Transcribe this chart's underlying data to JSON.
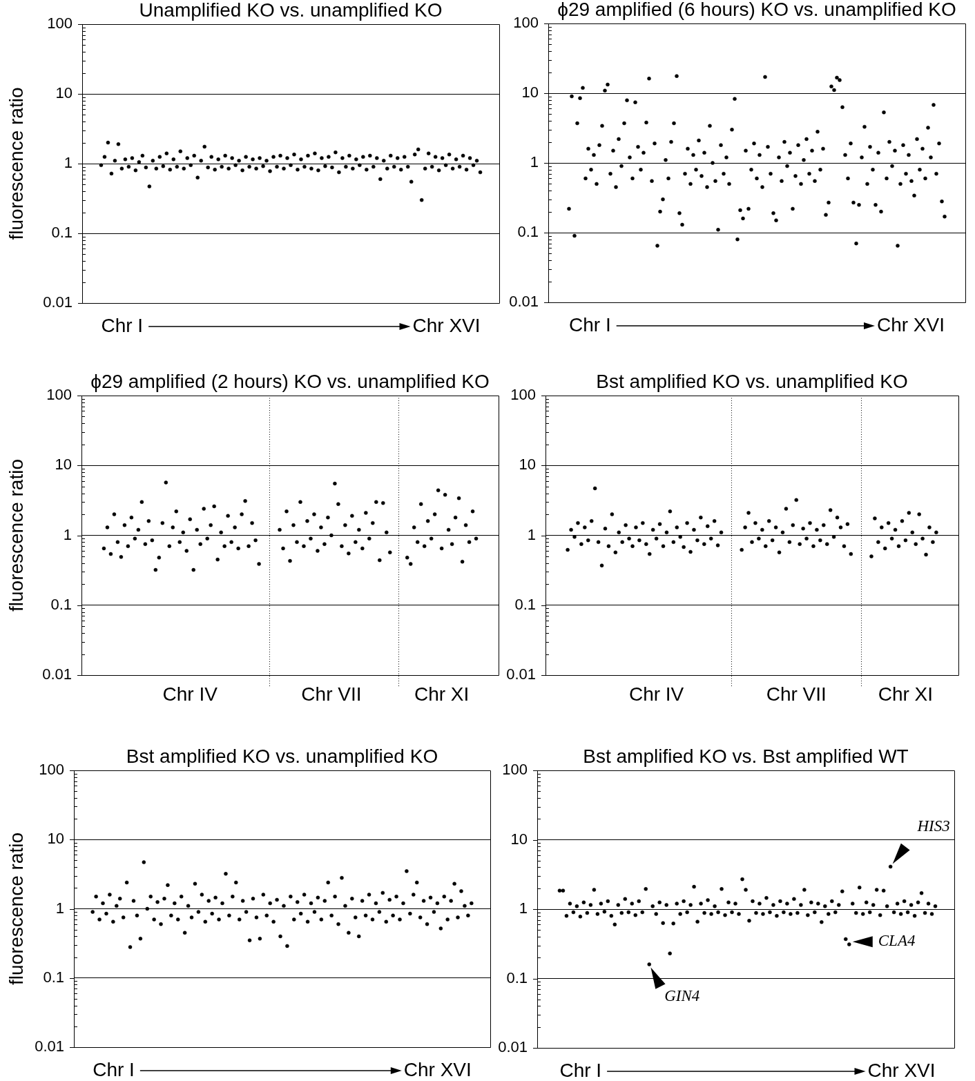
{
  "chart_data": [
    {
      "type": "scatter",
      "title": "Unamplified KO vs. unamplified KO",
      "ylabel": "fluorescence ratio",
      "color": "#000000",
      "marker": "circle",
      "log": true,
      "ylim": [
        0.01,
        100
      ],
      "grid": "y",
      "annotations": [
        "Chr I",
        "Chr XVI"
      ],
      "yticks": [
        0.01,
        {
          "value": 0.02,
          "label": null
        },
        {
          "value": 0.03,
          "label": null
        },
        {
          "value": 0.04,
          "label": null
        },
        {
          "value": 0.05,
          "label": null
        },
        {
          "value": 0.06,
          "label": null
        },
        {
          "value": 0.07,
          "label": null
        },
        {
          "value": 0.08,
          "label": null
        },
        {
          "value": 0.09,
          "label": null
        },
        0.1,
        {
          "value": 0.2,
          "label": null
        },
        {
          "value": 0.3,
          "label": null
        },
        {
          "value": 0.4,
          "label": null
        },
        {
          "value": 0.5,
          "label": null
        },
        {
          "value": 0.6,
          "label": null
        },
        {
          "value": 0.7,
          "label": null
        },
        {
          "value": 0.8,
          "label": null
        },
        {
          "value": 0.9,
          "label": null
        },
        1,
        {
          "value": 2,
          "label": null
        },
        {
          "value": 3,
          "label": null
        },
        {
          "value": 4,
          "label": null
        },
        {
          "value": 5,
          "label": null
        },
        {
          "value": 6,
          "label": null
        },
        {
          "value": 7,
          "label": null
        },
        {
          "value": 8,
          "label": null
        },
        {
          "value": 9,
          "label": null
        },
        10,
        {
          "value": 20,
          "label": null
        },
        {
          "value": 30,
          "label": null
        },
        {
          "value": 40,
          "label": null
        },
        {
          "value": 50,
          "label": null
        },
        {
          "value": 60,
          "label": null
        },
        {
          "value": 70,
          "label": null
        },
        {
          "value": 80,
          "label": null
        },
        {
          "value": 90,
          "label": null
        },
        100
      ],
      "categories": [
        null,
        null,
        null,
        null,
        null,
        null,
        null,
        null,
        null,
        null,
        null,
        null,
        null,
        null,
        null,
        null,
        null,
        null,
        null,
        null,
        null,
        null,
        null,
        null,
        null,
        null,
        null,
        null,
        null,
        null,
        null,
        null,
        null,
        null,
        null,
        null,
        null,
        null,
        null,
        null,
        null,
        null,
        null,
        null,
        null,
        null,
        null,
        null,
        null,
        null,
        null,
        null,
        null,
        null,
        null,
        null,
        null,
        null,
        null,
        null,
        null,
        null,
        null,
        null,
        null,
        null,
        null,
        null,
        null,
        null,
        null,
        null,
        null,
        null,
        null,
        null,
        null,
        null,
        null,
        null,
        null,
        null,
        null,
        null,
        null,
        null,
        null,
        null,
        null,
        null,
        null,
        null,
        null,
        null,
        null,
        null,
        null,
        null,
        null,
        null,
        null,
        null,
        null,
        null,
        null,
        null,
        null,
        null,
        null,
        null,
        null,
        null,
        null,
        null,
        null,
        null,
        null,
        null,
        null,
        null,
        null
      ],
      "values": [
        null,
        null,
        null,
        null,
        null,
        0.95,
        1.25,
        2.0,
        0.72,
        1.1,
        1.9,
        0.85,
        1.15,
        0.9,
        1.2,
        0.8,
        1.05,
        1.3,
        0.88,
        0.47,
        1.1,
        0.85,
        1.25,
        0.92,
        1.4,
        0.82,
        1.15,
        0.9,
        1.5,
        0.85,
        1.2,
        0.95,
        1.3,
        0.63,
        1.1,
        1.75,
        0.88,
        1.25,
        0.82,
        1.15,
        0.9,
        1.3,
        0.85,
        1.2,
        0.95,
        1.1,
        0.8,
        1.25,
        0.9,
        1.15,
        0.85,
        1.2,
        0.92,
        1.1,
        0.78,
        1.25,
        0.9,
        1.3,
        0.85,
        1.2,
        0.95,
        1.35,
        0.82,
        1.15,
        0.9,
        1.3,
        0.85,
        1.4,
        0.8,
        1.2,
        0.92,
        1.25,
        0.88,
        1.45,
        0.75,
        1.2,
        0.9,
        1.3,
        0.85,
        1.15,
        0.95,
        1.25,
        0.82,
        1.3,
        0.9,
        1.2,
        0.6,
        1.1,
        0.85,
        1.3,
        0.9,
        1.2,
        0.82,
        1.25,
        0.9,
        0.55,
        1.35,
        1.6,
        0.3,
        0.85,
        1.4,
        0.9,
        1.25,
        0.8,
        1.2,
        0.95,
        1.35,
        0.85,
        1.15,
        0.9,
        1.3,
        0.82,
        1.2,
        0.95,
        1.1,
        0.75,
        null,
        null,
        null,
        null,
        null
      ]
    },
    {
      "type": "scatter",
      "title": "ϕ29 amplified (6 hours) KO vs. unamplified KO",
      "color": "#000000",
      "marker": "circle",
      "log": true,
      "ylim": [
        0.01,
        100
      ],
      "grid": "y",
      "annotations": [
        "Chr I",
        "Chr XVI"
      ],
      "yticks": [
        0.01,
        {
          "value": 0.02,
          "label": null
        },
        {
          "value": 0.03,
          "label": null
        },
        {
          "value": 0.04,
          "label": null
        },
        {
          "value": 0.05,
          "label": null
        },
        {
          "value": 0.06,
          "label": null
        },
        {
          "value": 0.07,
          "label": null
        },
        {
          "value": 0.08,
          "label": null
        },
        {
          "value": 0.09,
          "label": null
        },
        0.1,
        {
          "value": 0.2,
          "label": null
        },
        {
          "value": 0.3,
          "label": null
        },
        {
          "value": 0.4,
          "label": null
        },
        {
          "value": 0.5,
          "label": null
        },
        {
          "value": 0.6,
          "label": null
        },
        {
          "value": 0.7,
          "label": null
        },
        {
          "value": 0.8,
          "label": null
        },
        {
          "value": 0.9,
          "label": null
        },
        1,
        {
          "value": 2,
          "label": null
        },
        {
          "value": 3,
          "label": null
        },
        {
          "value": 4,
          "label": null
        },
        {
          "value": 5,
          "label": null
        },
        {
          "value": 6,
          "label": null
        },
        {
          "value": 7,
          "label": null
        },
        {
          "value": 8,
          "label": null
        },
        {
          "value": 9,
          "label": null
        },
        10,
        {
          "value": 20,
          "label": null
        },
        {
          "value": 30,
          "label": null
        },
        {
          "value": 40,
          "label": null
        },
        {
          "value": 50,
          "label": null
        },
        {
          "value": 60,
          "label": null
        },
        {
          "value": 70,
          "label": null
        },
        {
          "value": 80,
          "label": null
        },
        {
          "value": 90,
          "label": null
        },
        100
      ],
      "categories": [
        null,
        null,
        null,
        null,
        null,
        null,
        null,
        null,
        null,
        null,
        null,
        null,
        null,
        null,
        null,
        null,
        null,
        null,
        null,
        null,
        null,
        null,
        null,
        null,
        null,
        null,
        null,
        null,
        null,
        null,
        null,
        null,
        null,
        null,
        null,
        null,
        null,
        null,
        null,
        null,
        null,
        null,
        null,
        null,
        null,
        null,
        null,
        null,
        null,
        null,
        null,
        null,
        null,
        null,
        null,
        null,
        null,
        null,
        null,
        null,
        null,
        null,
        null,
        null,
        null,
        null,
        null,
        null,
        null,
        null,
        null,
        null,
        null,
        null,
        null,
        null,
        null,
        null,
        null,
        null,
        null,
        null,
        null,
        null,
        null,
        null,
        null,
        null,
        null,
        null,
        null,
        null,
        null,
        null,
        null,
        null,
        null,
        null,
        null,
        null,
        null,
        null,
        null,
        null,
        null,
        null,
        null,
        null,
        null,
        null,
        null,
        null,
        null,
        null,
        null,
        null,
        null,
        null,
        null,
        null,
        null,
        null,
        null,
        null,
        null,
        null,
        null,
        null,
        null,
        null,
        null,
        null,
        null,
        null,
        null,
        null,
        null,
        null,
        null,
        null,
        null,
        null,
        null,
        null,
        null,
        null,
        null,
        null,
        null,
        null,
        null
      ],
      "values": [
        null,
        null,
        null,
        null,
        null,
        null,
        null,
        0.22,
        9.0,
        0.09,
        3.7,
        8.5,
        11.9,
        0.6,
        1.6,
        0.8,
        1.3,
        0.5,
        1.8,
        3.4,
        10.9,
        13.3,
        0.7,
        1.5,
        0.45,
        2.2,
        0.9,
        3.7,
        7.9,
        1.2,
        0.6,
        7.4,
        1.7,
        0.8,
        1.4,
        3.8,
        16.2,
        0.55,
        1.9,
        0.065,
        0.2,
        0.3,
        1.1,
        0.6,
        2.0,
        3.7,
        17.6,
        0.19,
        0.13,
        0.7,
        1.6,
        0.5,
        1.3,
        0.8,
        2.1,
        0.65,
        1.4,
        0.45,
        3.4,
        1.0,
        0.55,
        0.11,
        1.8,
        0.7,
        1.2,
        0.5,
        3.0,
        8.3,
        0.08,
        0.21,
        0.16,
        1.5,
        0.22,
        0.8,
        1.9,
        0.6,
        1.3,
        0.45,
        17.1,
        1.7,
        0.7,
        0.19,
        0.15,
        1.2,
        0.55,
        2.0,
        0.9,
        1.4,
        0.22,
        0.65,
        1.8,
        0.5,
        1.1,
        2.2,
        0.7,
        1.5,
        0.55,
        2.8,
        0.8,
        1.6,
        0.18,
        0.27,
        12.5,
        11.1,
        16.7,
        15.4,
        6.3,
        1.3,
        0.6,
        1.9,
        0.27,
        0.07,
        0.25,
        1.2,
        3.3,
        0.5,
        1.7,
        0.8,
        0.25,
        1.4,
        0.2,
        5.3,
        0.6,
        2.0,
        0.9,
        1.5,
        0.065,
        0.5,
        1.8,
        0.7,
        1.3,
        0.55,
        0.34,
        2.2,
        0.8,
        1.6,
        0.6,
        3.2,
        1.2,
        6.8,
        0.7,
        1.9,
        0.28,
        0.17,
        null,
        null,
        null,
        null,
        null,
        null,
        null
      ]
    },
    {
      "type": "scatter",
      "title": "ϕ29 amplified (2 hours) KO vs. unamplified KO",
      "ylabel": "fluorescence ratio",
      "color": "#000000",
      "marker": "circle",
      "log": true,
      "ylim": [
        0.01,
        100
      ],
      "grid": "y",
      "yticks": [
        0.01,
        {
          "value": 0.02,
          "label": null
        },
        {
          "value": 0.03,
          "label": null
        },
        {
          "value": 0.04,
          "label": null
        },
        {
          "value": 0.05,
          "label": null
        },
        {
          "value": 0.06,
          "label": null
        },
        {
          "value": 0.07,
          "label": null
        },
        {
          "value": 0.08,
          "label": null
        },
        {
          "value": 0.09,
          "label": null
        },
        0.1,
        {
          "value": 0.2,
          "label": null
        },
        {
          "value": 0.3,
          "label": null
        },
        {
          "value": 0.4,
          "label": null
        },
        {
          "value": 0.5,
          "label": null
        },
        {
          "value": 0.6,
          "label": null
        },
        {
          "value": 0.7,
          "label": null
        },
        {
          "value": 0.8,
          "label": null
        },
        {
          "value": 0.9,
          "label": null
        },
        1,
        {
          "value": 2,
          "label": null
        },
        {
          "value": 3,
          "label": null
        },
        {
          "value": 4,
          "label": null
        },
        {
          "value": 5,
          "label": null
        },
        {
          "value": 6,
          "label": null
        },
        {
          "value": 7,
          "label": null
        },
        {
          "value": 8,
          "label": null
        },
        {
          "value": 9,
          "label": null
        },
        10,
        {
          "value": 20,
          "label": null
        },
        {
          "value": 30,
          "label": null
        },
        {
          "value": 40,
          "label": null
        },
        {
          "value": 50,
          "label": null
        },
        {
          "value": 60,
          "label": null
        },
        {
          "value": 70,
          "label": null
        },
        {
          "value": 80,
          "label": null
        },
        {
          "value": 90,
          "label": null
        },
        100
      ],
      "categories": [
        null,
        null,
        null,
        null,
        null,
        null,
        null,
        null,
        null,
        null,
        null,
        null,
        null,
        null,
        null,
        null,
        null,
        null,
        null,
        null,
        null,
        null,
        null,
        null,
        null,
        null,
        null,
        null,
        null,
        null,
        null,
        "Chr IV",
        null,
        null,
        null,
        null,
        null,
        null,
        null,
        null,
        null,
        null,
        null,
        null,
        null,
        null,
        null,
        null,
        null,
        null,
        null,
        null,
        null,
        null,
        null,
        null,
        null,
        null,
        null,
        null,
        null,
        null,
        null,
        null,
        null,
        null,
        null,
        null,
        null,
        null,
        null,
        null,
        "Chr VII",
        null,
        null,
        null,
        null,
        null,
        null,
        null,
        null,
        null,
        null,
        null,
        null,
        null,
        null,
        null,
        null,
        null,
        null,
        null,
        null,
        null,
        null,
        null,
        null,
        null,
        null,
        null,
        null,
        null,
        null,
        null,
        "Chr XI",
        null,
        null,
        null,
        null,
        null,
        null,
        null,
        null,
        null,
        null,
        null,
        null,
        null,
        null,
        null,
        null
      ],
      "values": [
        null,
        null,
        null,
        null,
        null,
        null,
        0.65,
        1.3,
        0.54,
        2.0,
        0.8,
        0.49,
        1.4,
        0.7,
        1.8,
        0.9,
        1.2,
        3.0,
        0.75,
        1.6,
        0.85,
        0.32,
        0.48,
        1.5,
        5.7,
        0.7,
        1.3,
        2.2,
        0.8,
        1.1,
        0.6,
        1.7,
        0.32,
        1.2,
        0.75,
        2.4,
        0.9,
        1.4,
        2.6,
        0.45,
        1.1,
        0.7,
        1.9,
        0.8,
        1.3,
        0.65,
        2.0,
        3.1,
        0.7,
        1.5,
        0.85,
        0.39,
        null,
        null,
        null,
        null,
        null,
        1.2,
        0.65,
        2.2,
        0.43,
        1.4,
        0.8,
        3.0,
        0.7,
        1.6,
        0.9,
        2.0,
        0.6,
        1.3,
        0.75,
        1.8,
        1.0,
        5.5,
        2.8,
        0.7,
        1.4,
        0.55,
        1.9,
        0.8,
        1.2,
        0.65,
        2.1,
        0.9,
        1.5,
        3.0,
        0.44,
        2.9,
        1.1,
        0.57,
        null,
        null,
        null,
        null,
        0.48,
        0.39,
        1.3,
        0.8,
        2.8,
        0.7,
        1.6,
        0.9,
        2.0,
        4.4,
        0.65,
        3.8,
        1.2,
        0.75,
        1.8,
        3.4,
        0.42,
        1.4,
        0.8,
        2.2,
        0.9,
        null,
        null,
        null,
        null,
        null,
        null
      ]
    },
    {
      "type": "scatter",
      "title": "Bst amplified KO vs. unamplified KO",
      "color": "#000000",
      "marker": "circle",
      "log": true,
      "ylim": [
        0.01,
        100
      ],
      "grid": "y",
      "yticks": [
        0.01,
        {
          "value": 0.02,
          "label": null
        },
        {
          "value": 0.03,
          "label": null
        },
        {
          "value": 0.04,
          "label": null
        },
        {
          "value": 0.05,
          "label": null
        },
        {
          "value": 0.06,
          "label": null
        },
        {
          "value": 0.07,
          "label": null
        },
        {
          "value": 0.08,
          "label": null
        },
        {
          "value": 0.09,
          "label": null
        },
        0.1,
        {
          "value": 0.2,
          "label": null
        },
        {
          "value": 0.3,
          "label": null
        },
        {
          "value": 0.4,
          "label": null
        },
        {
          "value": 0.5,
          "label": null
        },
        {
          "value": 0.6,
          "label": null
        },
        {
          "value": 0.7,
          "label": null
        },
        {
          "value": 0.8,
          "label": null
        },
        {
          "value": 0.9,
          "label": null
        },
        1,
        {
          "value": 2,
          "label": null
        },
        {
          "value": 3,
          "label": null
        },
        {
          "value": 4,
          "label": null
        },
        {
          "value": 5,
          "label": null
        },
        {
          "value": 6,
          "label": null
        },
        {
          "value": 7,
          "label": null
        },
        {
          "value": 8,
          "label": null
        },
        {
          "value": 9,
          "label": null
        },
        10,
        {
          "value": 20,
          "label": null
        },
        {
          "value": 30,
          "label": null
        },
        {
          "value": 40,
          "label": null
        },
        {
          "value": 50,
          "label": null
        },
        {
          "value": 60,
          "label": null
        },
        {
          "value": 70,
          "label": null
        },
        {
          "value": 80,
          "label": null
        },
        {
          "value": 90,
          "label": null
        },
        100
      ],
      "categories": [
        null,
        null,
        null,
        null,
        null,
        null,
        null,
        null,
        null,
        null,
        null,
        null,
        null,
        null,
        null,
        null,
        null,
        null,
        null,
        null,
        null,
        null,
        null,
        null,
        null,
        null,
        null,
        null,
        null,
        null,
        null,
        null,
        "Chr IV",
        null,
        null,
        null,
        null,
        null,
        null,
        null,
        null,
        null,
        null,
        null,
        null,
        null,
        null,
        null,
        null,
        null,
        null,
        null,
        null,
        null,
        null,
        null,
        null,
        null,
        null,
        null,
        null,
        null,
        null,
        null,
        null,
        null,
        null,
        null,
        null,
        null,
        null,
        null,
        null,
        "Chr VII",
        null,
        null,
        null,
        null,
        null,
        null,
        null,
        null,
        null,
        null,
        null,
        null,
        null,
        null,
        null,
        null,
        null,
        null,
        null,
        null,
        null,
        null,
        null,
        null,
        null,
        null,
        null,
        null,
        null,
        null,
        null,
        "Chr XI",
        null,
        null,
        null,
        null,
        null,
        null,
        null,
        null,
        null,
        null,
        null,
        null,
        null,
        null,
        null
      ],
      "values": [
        null,
        null,
        null,
        null,
        null,
        null,
        0.62,
        1.2,
        0.95,
        1.5,
        0.75,
        1.3,
        0.85,
        1.6,
        4.7,
        0.8,
        0.37,
        1.25,
        0.7,
        2.0,
        0.57,
        1.1,
        0.8,
        1.4,
        0.9,
        0.7,
        1.3,
        0.85,
        1.5,
        0.75,
        0.54,
        1.2,
        0.9,
        1.45,
        0.7,
        1.1,
        2.2,
        0.8,
        1.3,
        0.95,
        0.68,
        1.5,
        0.58,
        1.2,
        0.85,
        1.8,
        0.75,
        1.35,
        0.9,
        1.6,
        0.72,
        1.1,
        null,
        null,
        null,
        null,
        null,
        0.62,
        1.3,
        2.1,
        0.8,
        1.5,
        0.9,
        1.2,
        0.7,
        1.6,
        0.85,
        1.3,
        0.57,
        1.1,
        2.4,
        0.8,
        1.4,
        3.2,
        0.75,
        1.25,
        0.9,
        1.5,
        0.7,
        1.2,
        0.85,
        1.4,
        0.75,
        2.3,
        0.95,
        1.8,
        1.3,
        0.7,
        1.45,
        0.54,
        null,
        null,
        null,
        null,
        null,
        0.5,
        1.75,
        0.8,
        1.3,
        0.65,
        1.5,
        0.9,
        1.2,
        0.7,
        1.6,
        0.85,
        2.1,
        1.1,
        0.75,
        2.0,
        0.9,
        0.53,
        1.3,
        0.8,
        1.1,
        null,
        null,
        null,
        null,
        null,
        null
      ]
    },
    {
      "type": "scatter",
      "title": "Bst amplified KO vs. unamplified KO",
      "ylabel": "fluorescence ratio",
      "color": "#000000",
      "marker": "circle",
      "log": true,
      "ylim": [
        0.01,
        100
      ],
      "grid": "y",
      "annotations": [
        "Chr I",
        "Chr XVI"
      ],
      "yticks": [
        0.01,
        {
          "value": 0.02,
          "label": null
        },
        {
          "value": 0.03,
          "label": null
        },
        {
          "value": 0.04,
          "label": null
        },
        {
          "value": 0.05,
          "label": null
        },
        {
          "value": 0.06,
          "label": null
        },
        {
          "value": 0.07,
          "label": null
        },
        {
          "value": 0.08,
          "label": null
        },
        {
          "value": 0.09,
          "label": null
        },
        0.1,
        {
          "value": 0.2,
          "label": null
        },
        {
          "value": 0.3,
          "label": null
        },
        {
          "value": 0.4,
          "label": null
        },
        {
          "value": 0.5,
          "label": null
        },
        {
          "value": 0.6,
          "label": null
        },
        {
          "value": 0.7,
          "label": null
        },
        {
          "value": 0.8,
          "label": null
        },
        {
          "value": 0.9,
          "label": null
        },
        1,
        {
          "value": 2,
          "label": null
        },
        {
          "value": 3,
          "label": null
        },
        {
          "value": 4,
          "label": null
        },
        {
          "value": 5,
          "label": null
        },
        {
          "value": 6,
          "label": null
        },
        {
          "value": 7,
          "label": null
        },
        {
          "value": 8,
          "label": null
        },
        {
          "value": 9,
          "label": null
        },
        10,
        {
          "value": 20,
          "label": null
        },
        {
          "value": 30,
          "label": null
        },
        {
          "value": 40,
          "label": null
        },
        {
          "value": 50,
          "label": null
        },
        {
          "value": 60,
          "label": null
        },
        {
          "value": 70,
          "label": null
        },
        {
          "value": 80,
          "label": null
        },
        {
          "value": 90,
          "label": null
        },
        100
      ],
      "categories": [
        null,
        null,
        null,
        null,
        null,
        null,
        null,
        null,
        null,
        null,
        null,
        null,
        null,
        null,
        null,
        null,
        null,
        null,
        null,
        null,
        null,
        null,
        null,
        null,
        null,
        null,
        null,
        null,
        null,
        null,
        null,
        null,
        null,
        null,
        null,
        null,
        null,
        null,
        null,
        null,
        null,
        null,
        null,
        null,
        null,
        null,
        null,
        null,
        null,
        null,
        null,
        null,
        null,
        null,
        null,
        null,
        null,
        null,
        null,
        null,
        null,
        null,
        null,
        null,
        null,
        null,
        null,
        null,
        null,
        null,
        null,
        null,
        null,
        null,
        null,
        null,
        null,
        null,
        null,
        null,
        null,
        null,
        null,
        null,
        null,
        null,
        null,
        null,
        null,
        null,
        null,
        null,
        null,
        null,
        null,
        null,
        null,
        null,
        null,
        null,
        null,
        null,
        null,
        null,
        null,
        null,
        null,
        null,
        null,
        null,
        null,
        null,
        null,
        null,
        null,
        null,
        null,
        null,
        null,
        null,
        null,
        null
      ],
      "values": [
        null,
        null,
        null,
        null,
        null,
        0.9,
        1.5,
        0.7,
        1.2,
        0.85,
        1.6,
        0.65,
        1.1,
        1.4,
        0.75,
        2.4,
        0.28,
        1.3,
        0.8,
        0.37,
        4.7,
        1.0,
        1.5,
        0.7,
        1.25,
        0.6,
        1.4,
        2.2,
        0.8,
        1.2,
        0.7,
        1.5,
        0.45,
        1.1,
        0.75,
        2.3,
        0.9,
        1.6,
        0.65,
        1.3,
        0.85,
        1.45,
        0.7,
        1.2,
        3.2,
        0.8,
        1.5,
        2.4,
        0.7,
        1.3,
        0.9,
        0.35,
        1.4,
        0.75,
        0.37,
        1.6,
        0.8,
        1.2,
        0.65,
        1.35,
        0.4,
        1.1,
        0.29,
        1.5,
        0.7,
        1.25,
        0.85,
        1.6,
        0.65,
        1.2,
        0.9,
        1.45,
        0.7,
        1.3,
        2.4,
        0.8,
        1.5,
        0.6,
        2.8,
        1.1,
        0.45,
        1.4,
        0.75,
        0.4,
        1.3,
        0.8,
        1.6,
        0.7,
        1.2,
        0.9,
        1.7,
        0.65,
        1.35,
        0.8,
        1.5,
        0.7,
        1.2,
        3.5,
        0.85,
        1.6,
        2.4,
        0.75,
        1.3,
        0.6,
        1.45,
        0.9,
        1.2,
        0.52,
        1.5,
        0.7,
        1.3,
        2.3,
        0.75,
        1.8,
        1.1,
        0.8,
        1.2,
        null,
        null,
        null,
        null,
        null
      ]
    },
    {
      "type": "scatter",
      "title": "Bst amplified KO vs. Bst amplified WT",
      "color": "#000000",
      "marker": "circle",
      "log": true,
      "ylim": [
        0.01,
        100
      ],
      "grid": "y",
      "annotations": [
        "Chr I",
        "Chr XVI",
        "HIS3",
        "CLA4",
        "GIN4"
      ],
      "yticks": [
        0.01,
        {
          "value": 0.02,
          "label": null
        },
        {
          "value": 0.03,
          "label": null
        },
        {
          "value": 0.04,
          "label": null
        },
        {
          "value": 0.05,
          "label": null
        },
        {
          "value": 0.06,
          "label": null
        },
        {
          "value": 0.07,
          "label": null
        },
        {
          "value": 0.08,
          "label": null
        },
        {
          "value": 0.09,
          "label": null
        },
        0.1,
        {
          "value": 0.2,
          "label": null
        },
        {
          "value": 0.3,
          "label": null
        },
        {
          "value": 0.4,
          "label": null
        },
        {
          "value": 0.5,
          "label": null
        },
        {
          "value": 0.6,
          "label": null
        },
        {
          "value": 0.7,
          "label": null
        },
        {
          "value": 0.8,
          "label": null
        },
        {
          "value": 0.9,
          "label": null
        },
        1,
        {
          "value": 2,
          "label": null
        },
        {
          "value": 3,
          "label": null
        },
        {
          "value": 4,
          "label": null
        },
        {
          "value": 5,
          "label": null
        },
        {
          "value": 6,
          "label": null
        },
        {
          "value": 7,
          "label": null
        },
        {
          "value": 8,
          "label": null
        },
        {
          "value": 9,
          "label": null
        },
        10,
        {
          "value": 20,
          "label": null
        },
        {
          "value": 30,
          "label": null
        },
        {
          "value": 40,
          "label": null
        },
        {
          "value": 50,
          "label": null
        },
        {
          "value": 60,
          "label": null
        },
        {
          "value": 70,
          "label": null
        },
        {
          "value": 80,
          "label": null
        },
        {
          "value": 90,
          "label": null
        },
        100
      ],
      "categories": [
        null,
        null,
        null,
        null,
        null,
        null,
        null,
        null,
        null,
        null,
        null,
        null,
        null,
        null,
        null,
        null,
        null,
        null,
        null,
        null,
        null,
        null,
        null,
        null,
        null,
        null,
        null,
        null,
        null,
        null,
        null,
        null,
        null,
        null,
        null,
        null,
        null,
        null,
        null,
        null,
        null,
        null,
        null,
        null,
        null,
        null,
        null,
        null,
        null,
        null,
        null,
        null,
        null,
        null,
        null,
        null,
        null,
        null,
        null,
        null,
        null,
        null,
        null,
        null,
        null,
        null,
        null,
        null,
        null,
        null,
        null,
        null,
        null,
        null,
        null,
        null,
        null,
        null,
        null,
        null,
        null,
        null,
        null,
        null,
        null,
        null,
        null,
        null,
        null,
        null,
        null,
        null,
        null,
        null,
        null,
        null,
        null,
        null,
        null,
        null,
        null,
        null,
        null,
        null,
        null,
        null,
        null,
        null,
        null,
        null,
        null,
        null,
        null,
        null,
        null,
        null,
        null,
        null,
        null,
        null,
        null
      ],
      "values": [
        null,
        null,
        null,
        null,
        null,
        null,
        1.85,
        1.85,
        0.8,
        1.2,
        0.9,
        1.1,
        0.78,
        1.25,
        0.88,
        1.15,
        1.9,
        0.85,
        1.2,
        0.92,
        1.3,
        0.8,
        0.6,
        1.15,
        0.88,
        1.4,
        0.9,
        1.2,
        0.82,
        1.3,
        0.9,
        1.95,
        0.16,
        1.1,
        0.85,
        1.25,
        0.63,
        1.15,
        0.23,
        0.62,
        1.2,
        0.85,
        1.3,
        0.9,
        1.15,
        2.1,
        0.66,
        1.2,
        0.88,
        1.35,
        0.85,
        1.1,
        0.9,
        1.95,
        0.82,
        1.25,
        0.9,
        1.2,
        0.85,
        2.7,
        1.9,
        0.68,
        1.3,
        0.88,
        1.2,
        0.85,
        1.45,
        0.9,
        1.15,
        0.8,
        1.3,
        0.9,
        1.2,
        0.85,
        1.4,
        0.88,
        1.15,
        1.9,
        0.82,
        1.25,
        0.9,
        1.2,
        0.65,
        1.1,
        0.85,
        1.3,
        0.9,
        1.15,
        1.8,
        0.37,
        0.31,
        1.2,
        0.88,
        2.05,
        0.85,
        1.25,
        0.9,
        1.15,
        1.9,
        0.82,
        1.85,
        1.1,
        4.1,
        0.9,
        1.2,
        0.85,
        1.3,
        0.9,
        1.15,
        0.8,
        1.25,
        1.7,
        0.88,
        1.2,
        0.85,
        1.1,
        null,
        null,
        null,
        null,
        null
      ]
    }
  ]
}
